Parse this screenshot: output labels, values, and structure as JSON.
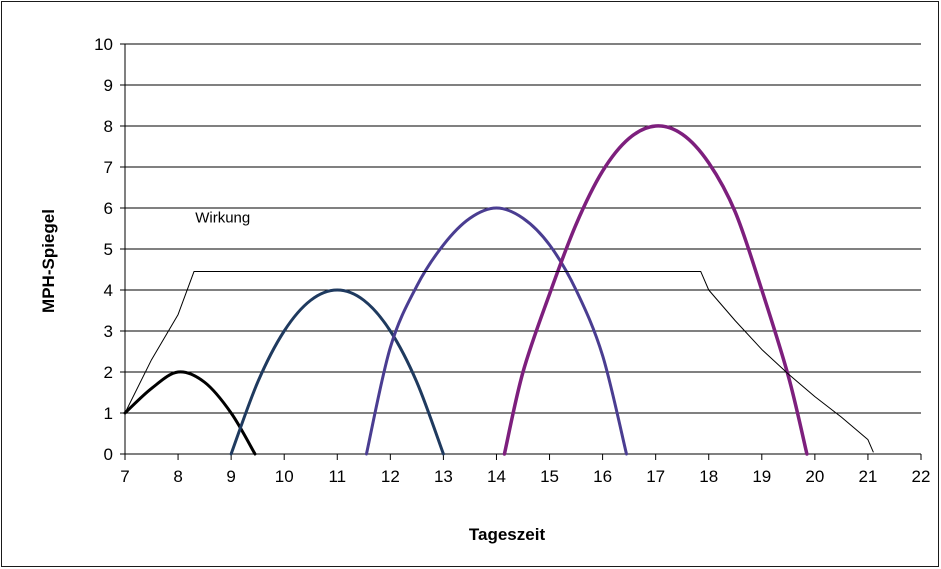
{
  "chart_data": {
    "type": "line",
    "xlabel": "Tageszeit",
    "ylabel": "MPH-Spiegel",
    "xlim": [
      7,
      22
    ],
    "ylim": [
      0,
      10
    ],
    "x_ticks": [
      "7",
      "8",
      "9",
      "10",
      "11",
      "12",
      "13",
      "14",
      "15",
      "16",
      "17",
      "18",
      "19",
      "20",
      "21",
      "22"
    ],
    "y_ticks": [
      "0",
      "1",
      "2",
      "3",
      "4",
      "5",
      "6",
      "7",
      "8",
      "9",
      "10"
    ],
    "grid": "horizontal",
    "annotations": [
      {
        "text": "Wirkung",
        "x": 8.7,
        "y": 5.5
      }
    ],
    "series": [
      {
        "color": "#000000",
        "width": 3,
        "x": [
          7,
          7.5,
          8,
          8.5,
          9,
          9.45
        ],
        "y": [
          1,
          1.6,
          2,
          1.75,
          1.0,
          0
        ]
      },
      {
        "color": "#1f3a5f",
        "width": 3,
        "x": [
          9,
          9.5,
          10,
          10.5,
          11,
          11.5,
          12,
          12.5,
          13
        ],
        "y": [
          0,
          1.75,
          3.0,
          3.75,
          4.0,
          3.75,
          3.0,
          1.75,
          0
        ]
      },
      {
        "color": "#4a3d91",
        "width": 3,
        "x": [
          11.55,
          12,
          12.5,
          13,
          13.5,
          14,
          14.5,
          15,
          15.5,
          16,
          16.45
        ],
        "y": [
          0,
          2.6,
          4.1,
          5.1,
          5.75,
          6.0,
          5.75,
          5.1,
          4.0,
          2.4,
          0
        ]
      },
      {
        "color": "#7d1f7d",
        "width": 3.5,
        "x": [
          14.15,
          14.5,
          15,
          15.5,
          16,
          16.5,
          17,
          17.5,
          18,
          18.5,
          19,
          19.5,
          19.85
        ],
        "y": [
          0,
          2.0,
          3.9,
          5.6,
          6.9,
          7.7,
          8.0,
          7.8,
          7.1,
          5.9,
          4.0,
          1.9,
          0
        ]
      },
      {
        "name": "Wirkung",
        "color": "#000000",
        "width": 1,
        "x": [
          7,
          7.5,
          8,
          8.3,
          9,
          10,
          11,
          12,
          13,
          14,
          15,
          16,
          17,
          17.85,
          18,
          18.5,
          19,
          19.5,
          20,
          20.5,
          21,
          21.1
        ],
        "y": [
          1,
          2.3,
          3.4,
          4.45,
          4.45,
          4.45,
          4.45,
          4.45,
          4.45,
          4.45,
          4.45,
          4.45,
          4.45,
          4.45,
          4.0,
          3.25,
          2.55,
          1.95,
          1.4,
          0.9,
          0.35,
          0.05
        ]
      }
    ]
  }
}
